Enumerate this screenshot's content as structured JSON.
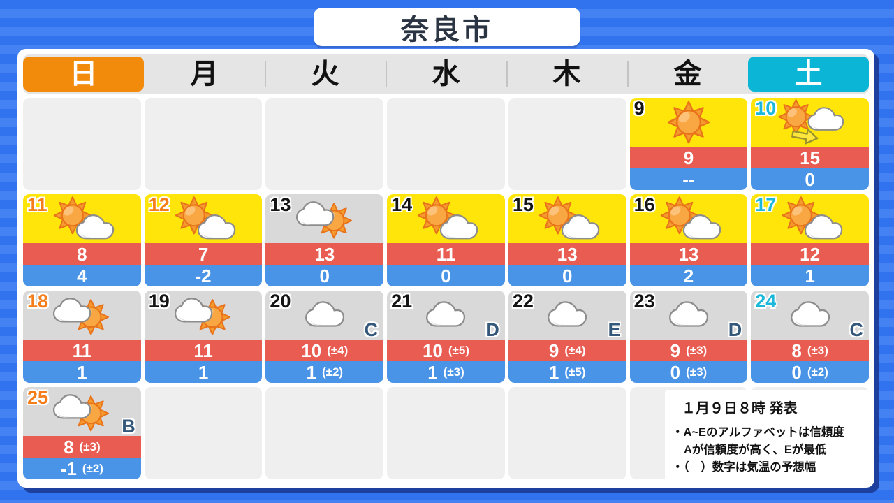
{
  "title": "奈良市",
  "weekdays": [
    {
      "label": "日",
      "type": "sunday"
    },
    {
      "label": "月",
      "type": "normal"
    },
    {
      "label": "火",
      "type": "normal"
    },
    {
      "label": "水",
      "type": "normal"
    },
    {
      "label": "木",
      "type": "normal"
    },
    {
      "label": "金",
      "type": "normal"
    },
    {
      "label": "土",
      "type": "saturday"
    }
  ],
  "rows": [
    [
      null,
      null,
      null,
      null,
      null,
      {
        "date": "9",
        "date_color": "black",
        "icon": "sun",
        "sky": "sunny",
        "high": "9",
        "high_range": "",
        "low": "--",
        "low_range": "",
        "reliability": ""
      },
      {
        "date": "10",
        "date_color": "cyan",
        "icon": "sun-then-cloud",
        "sky": "sunny",
        "high": "15",
        "high_range": "",
        "low": "0",
        "low_range": "",
        "reliability": ""
      }
    ],
    [
      {
        "date": "11",
        "date_color": "orange",
        "icon": "sun-cloud",
        "sky": "sunny",
        "high": "8",
        "high_range": "",
        "low": "4",
        "low_range": "",
        "reliability": ""
      },
      {
        "date": "12",
        "date_color": "orange",
        "icon": "sun-cloud",
        "sky": "sunny",
        "high": "7",
        "high_range": "",
        "low": "-2",
        "low_range": "",
        "reliability": ""
      },
      {
        "date": "13",
        "date_color": "black",
        "icon": "cloud-sun",
        "sky": "cloudy",
        "high": "13",
        "high_range": "",
        "low": "0",
        "low_range": "",
        "reliability": ""
      },
      {
        "date": "14",
        "date_color": "black",
        "icon": "sun-cloud",
        "sky": "sunny",
        "high": "11",
        "high_range": "",
        "low": "0",
        "low_range": "",
        "reliability": ""
      },
      {
        "date": "15",
        "date_color": "black",
        "icon": "sun-cloud",
        "sky": "sunny",
        "high": "13",
        "high_range": "",
        "low": "0",
        "low_range": "",
        "reliability": ""
      },
      {
        "date": "16",
        "date_color": "black",
        "icon": "sun-cloud",
        "sky": "sunny",
        "high": "13",
        "high_range": "",
        "low": "2",
        "low_range": "",
        "reliability": ""
      },
      {
        "date": "17",
        "date_color": "cyan",
        "icon": "sun-cloud",
        "sky": "sunny",
        "high": "12",
        "high_range": "",
        "low": "1",
        "low_range": "",
        "reliability": ""
      }
    ],
    [
      {
        "date": "18",
        "date_color": "orange",
        "icon": "cloud-sun",
        "sky": "cloudy",
        "high": "11",
        "high_range": "",
        "low": "1",
        "low_range": "",
        "reliability": ""
      },
      {
        "date": "19",
        "date_color": "black",
        "icon": "cloud-sun",
        "sky": "cloudy",
        "high": "11",
        "high_range": "",
        "low": "1",
        "low_range": "",
        "reliability": ""
      },
      {
        "date": "20",
        "date_color": "black",
        "icon": "cloud",
        "sky": "cloudy",
        "high": "10",
        "high_range": "(±4)",
        "low": "1",
        "low_range": "(±2)",
        "reliability": "C"
      },
      {
        "date": "21",
        "date_color": "black",
        "icon": "cloud",
        "sky": "cloudy",
        "high": "10",
        "high_range": "(±5)",
        "low": "1",
        "low_range": "(±3)",
        "reliability": "D"
      },
      {
        "date": "22",
        "date_color": "black",
        "icon": "cloud",
        "sky": "cloudy",
        "high": "9",
        "high_range": "(±4)",
        "low": "1",
        "low_range": "(±5)",
        "reliability": "E"
      },
      {
        "date": "23",
        "date_color": "black",
        "icon": "cloud",
        "sky": "cloudy",
        "high": "9",
        "high_range": "(±3)",
        "low": "0",
        "low_range": "(±3)",
        "reliability": "D"
      },
      {
        "date": "24",
        "date_color": "cyan",
        "icon": "cloud",
        "sky": "cloudy",
        "high": "8",
        "high_range": "(±3)",
        "low": "0",
        "low_range": "(±2)",
        "reliability": "C"
      }
    ],
    [
      {
        "date": "25",
        "date_color": "orange",
        "icon": "cloud-sun",
        "sky": "cloudy",
        "high": "8",
        "high_range": "(±3)",
        "low": "-1",
        "low_range": "(±2)",
        "reliability": "B"
      },
      null,
      null,
      null,
      null,
      null,
      null
    ]
  ],
  "notice": {
    "issued": "１月９日８時 発表",
    "lines": [
      "・A~Eのアルファベットは信頼度",
      "Aが信頼度が高く、Eが最低",
      "・（　）数字は気温の予想幅"
    ]
  },
  "icons": {
    "sun": "sunny-icon",
    "sun-cloud": "sun-and-cloud-icon",
    "cloud-sun": "cloud-and-sun-icon",
    "cloud": "cloudy-icon",
    "sun-then-cloud": "sun-then-cloud-icon"
  },
  "colors": {
    "bg_stripe_dark": "#3172ee",
    "bg_stripe_light": "#4481f3",
    "panel_shadow": "#1d3f9e",
    "header_bg": "#e5e5e5",
    "weekday_sep": "#c4c4c4",
    "sunday_accent": "#f28b0c",
    "saturday_accent": "#0ab5d6",
    "sunny_bg": "#ffe50a",
    "cloudy_bg": "#d9d9d9",
    "empty_bg": "#efefef",
    "high_bg": "#e85c52",
    "low_bg": "#4a94e8",
    "date_black": "#141414",
    "date_orange": "#f57d1a",
    "date_cyan": "#1cb8dc",
    "grade_color": "#33587a",
    "title_color": "#2b3442"
  }
}
